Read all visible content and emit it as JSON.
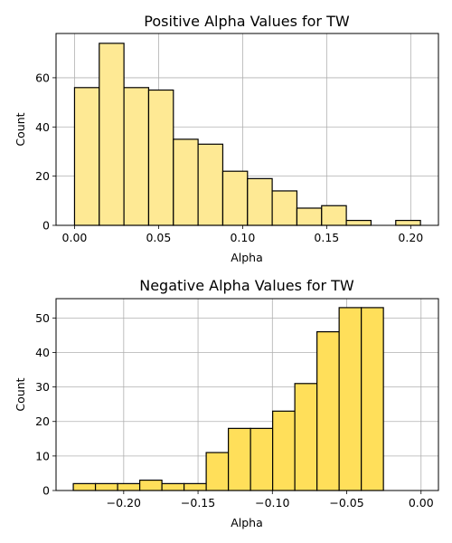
{
  "chart_data": [
    {
      "type": "bar",
      "title": "Positive Alpha Values for TW",
      "xlabel": "Alpha",
      "ylabel": "Count",
      "xlim": [
        -0.011,
        0.2165
      ],
      "ylim": [
        0,
        78
      ],
      "xticks": [
        0.0,
        0.05,
        0.1,
        0.15,
        0.2
      ],
      "xtick_labels": [
        "0.00",
        "0.05",
        "0.10",
        "0.15",
        "0.20"
      ],
      "yticks": [
        0,
        20,
        40,
        60
      ],
      "ytick_labels": [
        "0",
        "20",
        "40",
        "60"
      ],
      "grid": true,
      "bar_color": "#fee994",
      "bins": [
        {
          "x0": 0.0,
          "x1": 0.0147,
          "count": 56
        },
        {
          "x0": 0.0147,
          "x1": 0.0294,
          "count": 74
        },
        {
          "x0": 0.0294,
          "x1": 0.0441,
          "count": 56
        },
        {
          "x0": 0.0441,
          "x1": 0.0588,
          "count": 55
        },
        {
          "x0": 0.0588,
          "x1": 0.0735,
          "count": 35
        },
        {
          "x0": 0.0735,
          "x1": 0.0882,
          "count": 33
        },
        {
          "x0": 0.0882,
          "x1": 0.1029,
          "count": 22
        },
        {
          "x0": 0.1029,
          "x1": 0.1176,
          "count": 19
        },
        {
          "x0": 0.1176,
          "x1": 0.1323,
          "count": 14
        },
        {
          "x0": 0.1323,
          "x1": 0.147,
          "count": 7
        },
        {
          "x0": 0.147,
          "x1": 0.1617,
          "count": 8
        },
        {
          "x0": 0.1617,
          "x1": 0.1764,
          "count": 2
        },
        {
          "x0": 0.1764,
          "x1": 0.1911,
          "count": 0
        },
        {
          "x0": 0.1911,
          "x1": 0.2058,
          "count": 2
        }
      ]
    },
    {
      "type": "bar",
      "title": "Negative Alpha Values for TW",
      "xlabel": "Alpha",
      "ylabel": "Count",
      "xlim": [
        -0.2455,
        0.0117
      ],
      "ylim": [
        0,
        55.6
      ],
      "xticks": [
        -0.2,
        -0.15,
        -0.1,
        -0.05,
        0.0
      ],
      "xtick_labels": [
        "−0.20",
        "−0.15",
        "−0.10",
        "−0.05",
        "0.00"
      ],
      "yticks": [
        0,
        10,
        20,
        30,
        40,
        50
      ],
      "ytick_labels": [
        "0",
        "10",
        "20",
        "30",
        "40",
        "50"
      ],
      "grid": true,
      "bar_color": "#ffdf5a",
      "bins": [
        {
          "x0": -0.2339,
          "x1": -0.219,
          "count": 2
        },
        {
          "x0": -0.219,
          "x1": -0.2041,
          "count": 2
        },
        {
          "x0": -0.2041,
          "x1": -0.1892,
          "count": 2
        },
        {
          "x0": -0.1892,
          "x1": -0.1743,
          "count": 3
        },
        {
          "x0": -0.1743,
          "x1": -0.1594,
          "count": 2
        },
        {
          "x0": -0.1594,
          "x1": -0.1445,
          "count": 2
        },
        {
          "x0": -0.1445,
          "x1": -0.1296,
          "count": 11
        },
        {
          "x0": -0.1296,
          "x1": -0.1147,
          "count": 18
        },
        {
          "x0": -0.1147,
          "x1": -0.0998,
          "count": 18
        },
        {
          "x0": -0.0998,
          "x1": -0.0849,
          "count": 23
        },
        {
          "x0": -0.0849,
          "x1": -0.07,
          "count": 31
        },
        {
          "x0": -0.07,
          "x1": -0.0551,
          "count": 46
        },
        {
          "x0": -0.0551,
          "x1": -0.0402,
          "count": 53
        },
        {
          "x0": -0.0402,
          "x1": -0.0253,
          "count": 53
        }
      ]
    }
  ]
}
